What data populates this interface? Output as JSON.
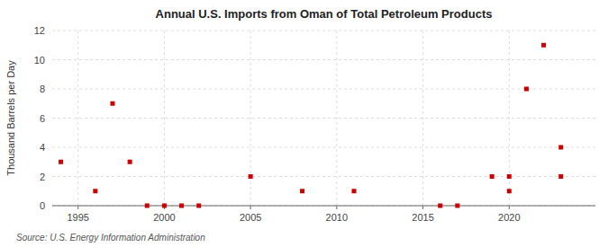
{
  "chart_data": {
    "type": "scatter",
    "title": "Annual U.S. Imports from Oman of Total Petroleum Products",
    "ylabel": "Thousand Barrels per Day",
    "source": "Source: U.S. Energy Information Administration",
    "color": "#cc0000",
    "marker": "square",
    "grid": true,
    "xlim": [
      1993.5,
      2025
    ],
    "ylim": [
      0,
      12
    ],
    "xticks": [
      1995,
      2000,
      2005,
      2010,
      2015,
      2020
    ],
    "yticks": [
      0,
      2,
      4,
      6,
      8,
      10,
      12
    ],
    "x": [
      1994,
      1996,
      1997,
      1998,
      1999,
      2000,
      2001,
      2002,
      2005,
      2008,
      2011,
      2016,
      2017,
      2019,
      2020,
      2020,
      2021,
      2022,
      2023,
      2023
    ],
    "values": [
      3,
      1,
      7,
      3,
      0,
      0,
      0,
      0,
      2,
      1,
      1,
      0,
      0,
      2,
      2,
      1,
      8,
      11,
      4,
      2
    ]
  }
}
